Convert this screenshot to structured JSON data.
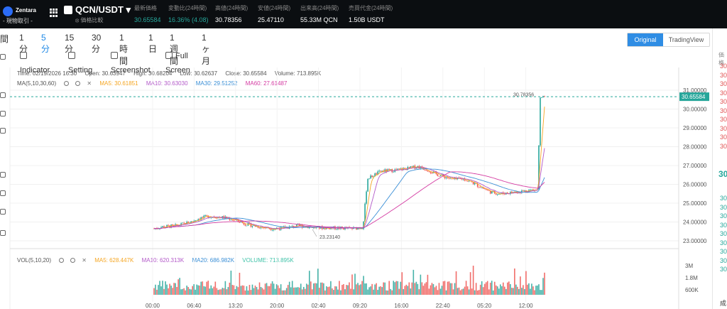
{
  "header": {
    "brand": "Zentara",
    "brand_sub": "- 現物取引 -",
    "pair": "QCN/USDT ▾",
    "pair_sub": "⦻ 価格比較",
    "stats": [
      {
        "label": "最新価格",
        "value": "30.65584",
        "color": "green"
      },
      {
        "label": "変動比(24時間)",
        "value": "16.36% (4.08)",
        "color": "green"
      },
      {
        "label": "高値(24時間)",
        "value": "30.78356",
        "color": "plain"
      },
      {
        "label": "安値(24時間)",
        "value": "25.47110",
        "color": "plain"
      },
      {
        "label": "出来高(24時間)",
        "value": "55.33M QCN",
        "color": "plain"
      },
      {
        "label": "売買代金(24時間)",
        "value": "1.50B USDT",
        "color": "plain"
      }
    ]
  },
  "intervals": [
    "間",
    "1分",
    "5分",
    "15分",
    "30分",
    "1時間",
    "1日",
    "1週間",
    "1ヶ月"
  ],
  "active_interval": "5分",
  "view_toggle": {
    "original": "Original",
    "tradingview": "TradingView"
  },
  "toolbar": {
    "indicator": "Indicator",
    "setting": "Setting",
    "screenshot": "Screenshot",
    "fullscreen": "Full Screen"
  },
  "ohlc": {
    "time": "Time: 02/19/2026 16:30",
    "open": "Open: 30.63947",
    "high": "High: 30.68204",
    "low": "Low: 30.62637",
    "close": "Close: 30.65584",
    "volume": "Volume: 713.895K"
  },
  "ma_legend": {
    "label": "MA(5,10,30,60)",
    "ma5": "MA5: 30.61851",
    "ma10": "MA10: 30.63030",
    "ma30": "MA30: 29.51252",
    "ma60": "MA60: 27.61487"
  },
  "vol_legend": {
    "label": "VOL(5,10,20)",
    "ma5": "MA5: 628.447K",
    "ma10": "MA10: 620.313K",
    "ma20": "MA20: 686.982K",
    "volume": "VOLUME: 713.895K"
  },
  "chart_data": {
    "type": "candlestick",
    "price_axis": [
      "31.00000",
      "30.00000",
      "29.00000",
      "28.00000",
      "27.00000",
      "26.00000",
      "25.00000",
      "24.00000",
      "23.00000"
    ],
    "current_price_label": "30.65584",
    "high_marker": "30.78356",
    "low_marker": "23.23140",
    "volume_axis": [
      "3M",
      "1.8M",
      "600K"
    ],
    "time_labels": [
      "00:00",
      "06:40",
      "13:20",
      "20:00",
      "02:40",
      "09:20",
      "16:00",
      "22:40",
      "05:20",
      "12:00"
    ],
    "close_path": [
      [
        0,
        23.65
      ],
      [
        0.02,
        23.75
      ],
      [
        0.05,
        23.8
      ],
      [
        0.08,
        24.0
      ],
      [
        0.1,
        24.2
      ],
      [
        0.12,
        24.3
      ],
      [
        0.15,
        24.25
      ],
      [
        0.18,
        24.1
      ],
      [
        0.2,
        23.9
      ],
      [
        0.23,
        23.75
      ],
      [
        0.26,
        23.65
      ],
      [
        0.29,
        23.7
      ],
      [
        0.32,
        23.8
      ],
      [
        0.36,
        23.7
      ],
      [
        0.4,
        23.68
      ],
      [
        0.44,
        23.65
      ],
      [
        0.46,
        23.72
      ],
      [
        0.47,
        26.3
      ],
      [
        0.5,
        26.7
      ],
      [
        0.53,
        26.75
      ],
      [
        0.56,
        26.85
      ],
      [
        0.58,
        26.95
      ],
      [
        0.6,
        26.8
      ],
      [
        0.62,
        26.55
      ],
      [
        0.64,
        26.4
      ],
      [
        0.66,
        26.25
      ],
      [
        0.68,
        26.3
      ],
      [
        0.7,
        26.1
      ],
      [
        0.72,
        25.85
      ],
      [
        0.74,
        25.6
      ],
      [
        0.76,
        25.5
      ],
      [
        0.78,
        25.55
      ],
      [
        0.8,
        25.6
      ],
      [
        0.83,
        25.7
      ],
      [
        0.845,
        25.7
      ],
      [
        0.85,
        30.55
      ],
      [
        0.86,
        30.62
      ]
    ]
  },
  "right_panel": {
    "title": "価格",
    "prices": [
      "30.6",
      "30.6",
      "30.6",
      "30.6",
      "30.6",
      "30.6",
      "30.6",
      "30.6",
      "30.6",
      "30.6"
    ],
    "big": "30",
    "green_prices": [
      "30.6",
      "30.6",
      "30.6",
      "30.6",
      "30.6",
      "30.6",
      "30.6",
      "30.6",
      "30.6"
    ],
    "footer": "成"
  }
}
